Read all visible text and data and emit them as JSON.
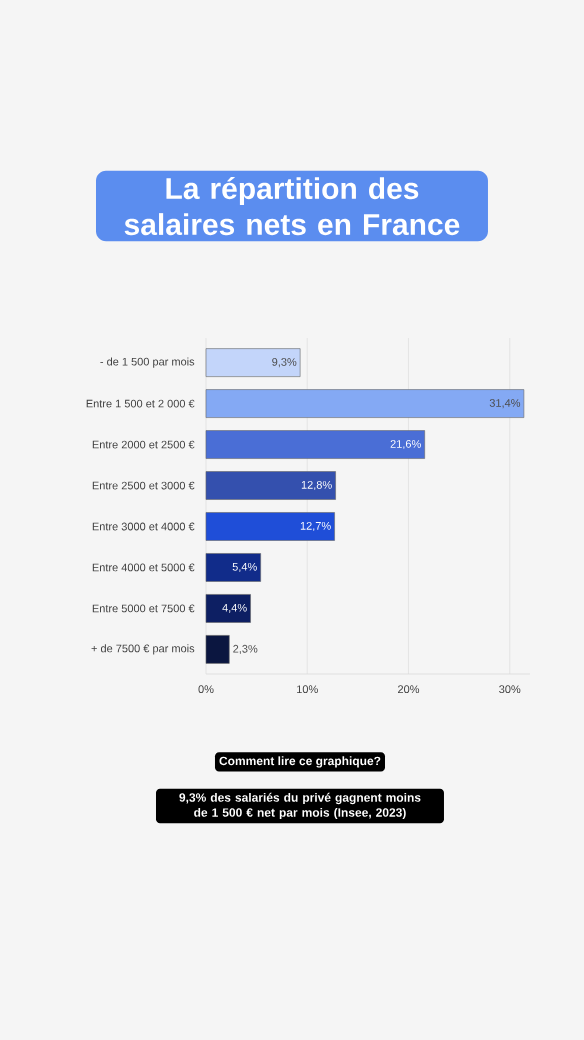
{
  "chart_data": {
    "type": "bar",
    "orientation": "horizontal",
    "title": "La répartition des salaires nets en France",
    "categories": [
      "- de 1 500 par mois",
      "Entre 1 500 et 2 000 €",
      "Entre 2000 et 2500 €",
      "Entre 2500 et 3000 €",
      "Entre 3000 et 4000 €",
      "Entre 4000 et 5000 €",
      "Entre 5000 et 7500 €",
      "+ de 7500 € par mois"
    ],
    "values": [
      9.3,
      31.4,
      21.6,
      12.8,
      12.7,
      5.4,
      4.4,
      2.3
    ],
    "value_labels": [
      "9,3%",
      "31,4%",
      "21,6%",
      "12,8%",
      "12,7%",
      "5,4%",
      "4,4%",
      "2,3%"
    ],
    "colors": [
      "#c3d5fa",
      "#84a9f4",
      "#4a6ed6",
      "#3450ae",
      "#1f4ed8",
      "#112c8a",
      "#0d1f63",
      "#0b1640"
    ],
    "xlim": [
      0,
      32
    ],
    "xticks": [
      {
        "value": 0,
        "label": "0%"
      },
      {
        "value": 10,
        "label": "10%"
      },
      {
        "value": 20,
        "label": "20%"
      },
      {
        "value": 30,
        "label": "30%"
      }
    ],
    "grid": "x",
    "annotations": [
      "Comment lire ce graphique?",
      "9,3% des salariés du privé gagnent moins de 1 500 € net par mois (Insee, 2023)"
    ]
  }
}
